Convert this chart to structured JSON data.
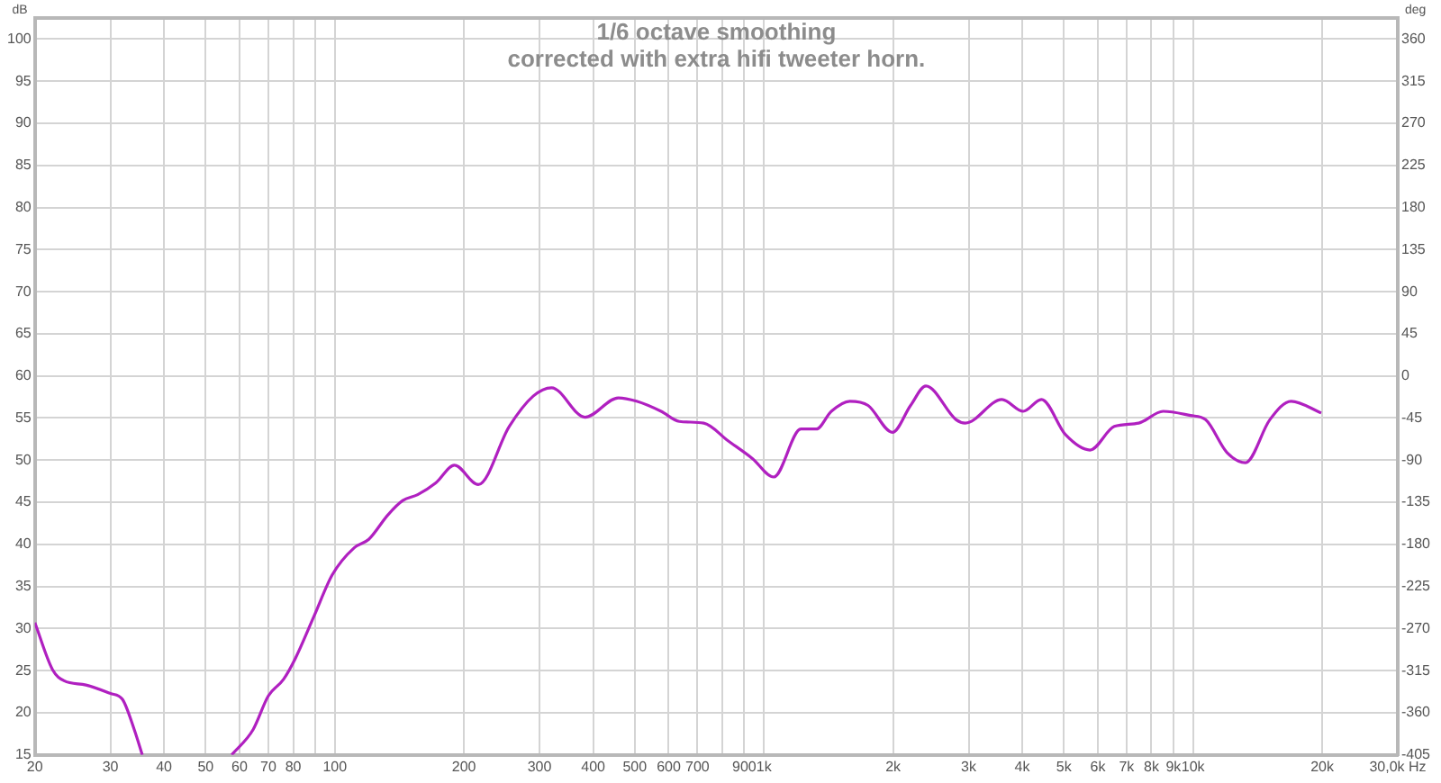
{
  "chart_data": {
    "type": "line",
    "title": "1/6 octave smoothing",
    "subtitle": "corrected with extra hifi tweeter horn.",
    "ylabel": "dB",
    "y2label": "deg",
    "x": [
      20,
      22,
      23.4,
      26.3,
      30,
      32,
      34.1,
      35.6,
      45,
      57.5,
      64.5,
      70,
      76,
      81,
      89.5,
      98.7,
      111,
      120,
      133,
      144,
      156,
      172,
      190,
      216,
      255,
      290,
      320,
      383,
      458,
      505,
      576,
      635,
      724,
      825,
      940,
      1054,
      1220,
      1325,
      1436,
      1585,
      1749,
      1993,
      2197,
      2385,
      2805,
      2946,
      3586,
      4021,
      4433,
      5050,
      5754,
      6555,
      7475,
      8520,
      9870,
      10700,
      12000,
      13250,
      15100,
      16930,
      19900
    ],
    "series": [
      {
        "color": "#b020c0",
        "values": [
          30.7,
          25.1,
          23.8,
          23.3,
          22.3,
          21.6,
          18.0,
          15,
          null,
          15,
          18.0,
          22,
          24,
          26.5,
          31.5,
          36.4,
          39.6,
          40.6,
          43.5,
          45.2,
          45.9,
          47.3,
          49.4,
          47.1,
          54.0,
          57.6,
          58.6,
          55.1,
          57.4,
          57.0,
          55.8,
          54.6,
          54.4,
          52.3,
          50.2,
          48.0,
          53.7,
          53.7,
          55.8,
          57.0,
          56.5,
          53.3,
          56.5,
          58.8,
          54.8,
          54.4,
          57.2,
          55.8,
          57.2,
          53.0,
          51.2,
          54.0,
          54.4,
          55.8,
          55.3,
          54.8,
          50.9,
          49.7,
          54.8,
          57.0,
          55.6
        ]
      }
    ],
    "log": "x",
    "grid": true,
    "xlim": [
      20,
      30000
    ],
    "xticks": [
      20,
      30,
      40,
      50,
      60,
      70,
      80,
      {
        "value": 90,
        "label": null
      },
      100,
      200,
      300,
      400,
      500,
      600,
      700,
      {
        "value": 800,
        "label": null
      },
      900,
      {
        "value": 1000,
        "label": "1k"
      },
      {
        "value": 2000,
        "label": "2k"
      },
      {
        "value": 3000,
        "label": "3k"
      },
      {
        "value": 4000,
        "label": "4k"
      },
      {
        "value": 5000,
        "label": "5k"
      },
      {
        "value": 6000,
        "label": "6k"
      },
      {
        "value": 7000,
        "label": "7k"
      },
      {
        "value": 8000,
        "label": "8k"
      },
      {
        "value": 9000,
        "label": "9k"
      },
      {
        "value": 10000,
        "label": "10k"
      },
      {
        "value": 20000,
        "label": "20k"
      },
      {
        "value": 30000,
        "label": "30,0k Hz"
      }
    ],
    "ylim": [
      15,
      102.5
    ],
    "yticks": [
      15,
      20,
      25,
      30,
      35,
      40,
      45,
      50,
      55,
      60,
      65,
      70,
      75,
      80,
      85,
      90,
      95,
      100
    ],
    "y2lim": [
      -405,
      382.5
    ],
    "y2ticks": [
      -405,
      -360,
      -315,
      -270,
      -225,
      -180,
      -135,
      -90,
      -45,
      0,
      45,
      90,
      135,
      180,
      225,
      270,
      315,
      360
    ]
  }
}
